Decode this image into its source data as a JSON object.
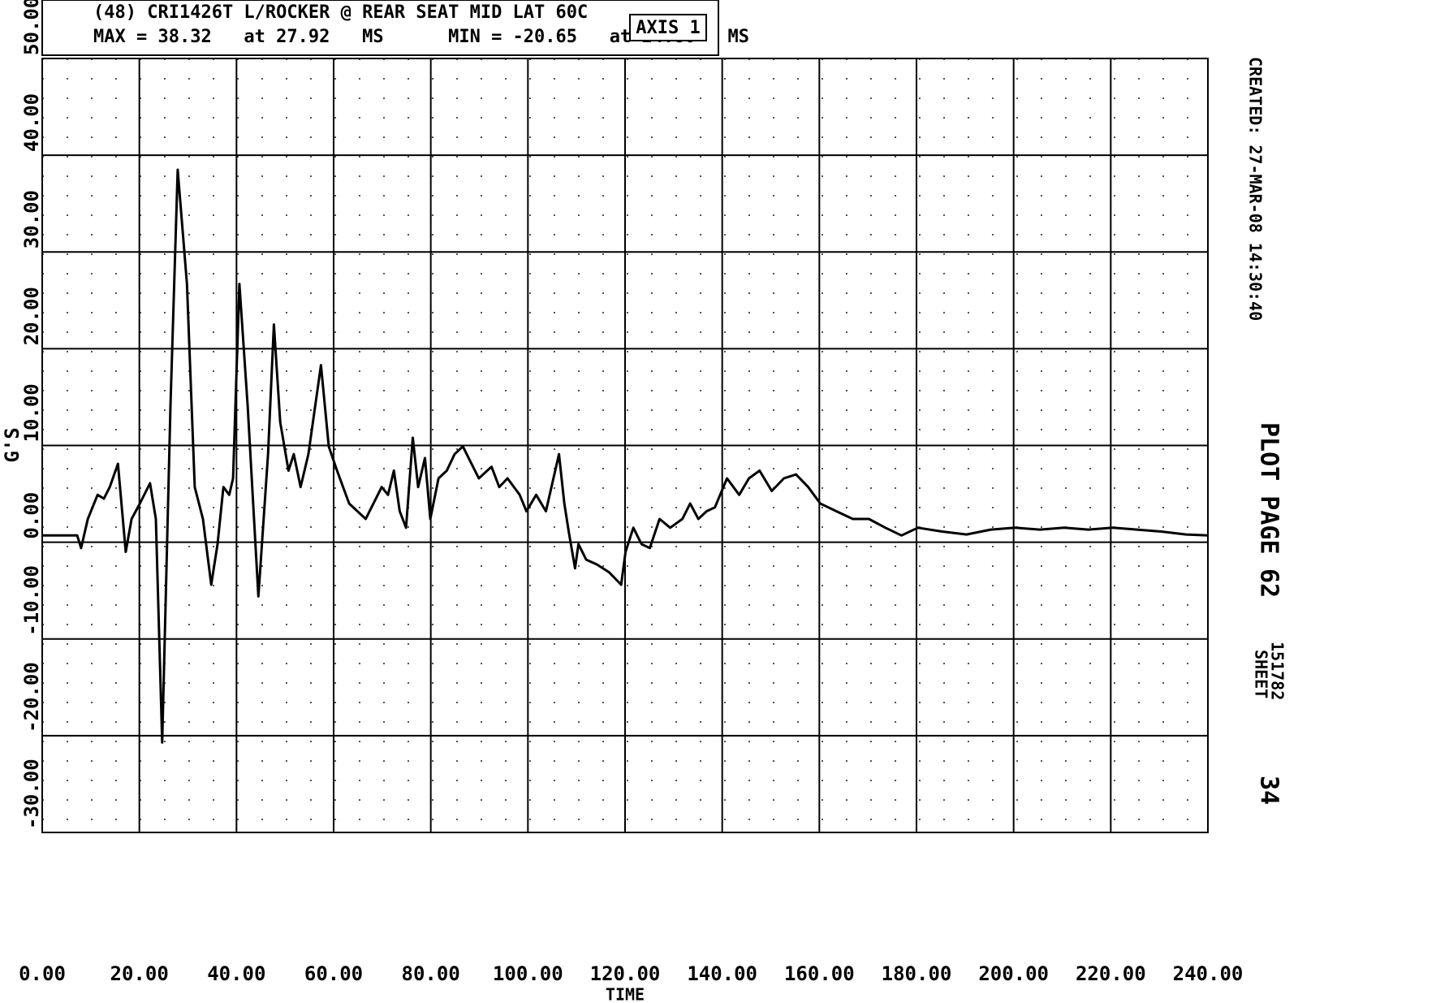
{
  "chart_data": {
    "type": "line",
    "title": "(48) CRI1426T L/ROCKER @ REAR SEAT MID LAT 60C",
    "subtitle": "MAX = 38.32   at 27.92   MS      MIN = -20.65   at 24.80   MS",
    "annotations": [
      "AXIS 1"
    ],
    "xlabel": "TIME",
    "ylabel": "G'S",
    "side_text": [
      "CREATED: 27-MAR-08 14:30:40",
      "PLOT PAGE",
      "62",
      "SHEET",
      "151782",
      "34"
    ],
    "color": "#000000",
    "grid": true,
    "xlim": [
      0,
      240
    ],
    "ylim": [
      -30,
      50
    ],
    "xticks": [
      {
        "value": 0,
        "label": "0.00"
      },
      {
        "value": 20,
        "label": "20.00"
      },
      {
        "value": 40,
        "label": "40.00"
      },
      {
        "value": 60,
        "label": "60.00"
      },
      {
        "value": 80,
        "label": "80.00"
      },
      {
        "value": 100,
        "label": "100.00"
      },
      {
        "value": 120,
        "label": "120.00"
      },
      {
        "value": 140,
        "label": "140.00"
      },
      {
        "value": 160,
        "label": "160.00"
      },
      {
        "value": 180,
        "label": "180.00"
      },
      {
        "value": 200,
        "label": "200.00"
      },
      {
        "value": 220,
        "label": "220.00"
      },
      {
        "value": 240,
        "label": "240.00"
      }
    ],
    "yticks": [
      {
        "value": -30,
        "label": "-30.00"
      },
      {
        "value": -20,
        "label": "-20.00"
      },
      {
        "value": -10,
        "label": "-10.00"
      },
      {
        "value": 0,
        "label": "0.00"
      },
      {
        "value": 10,
        "label": "10.00"
      },
      {
        "value": 20,
        "label": "20.00"
      },
      {
        "value": 30,
        "label": "30.00"
      },
      {
        "value": 40,
        "label": "40.00"
      },
      {
        "value": 50,
        "label": "50.00"
      }
    ],
    "x": [
      0,
      4.7,
      7.2,
      8,
      9.4,
      11.4,
      12.7,
      13.9,
      15.6,
      17.2,
      18.4,
      20.1,
      22.2,
      23.4,
      24.7,
      26.4,
      27.9,
      29.8,
      31.4,
      33.1,
      34.8,
      36.1,
      37.3,
      38.5,
      39.3,
      40.6,
      42.3,
      44.5,
      46.5,
      47.7,
      49.0,
      50.7,
      51.8,
      53.2,
      54.8,
      57.4,
      59.0,
      60.7,
      63.2,
      66.6,
      69.9,
      71.2,
      72.4,
      73.6,
      74.9,
      76.3,
      77.4,
      78.8,
      79.9,
      81.6,
      83.3,
      84.9,
      86.6,
      88.3,
      89.9,
      92.5,
      94.1,
      95.8,
      98.3,
      99.7,
      101.7,
      103.7,
      106.4,
      107.5,
      108.4,
      109.7,
      110.4,
      112.0,
      114.2,
      116.7,
      119.2,
      120.1,
      121.7,
      123.4,
      125.1,
      127.1,
      129.3,
      131.8,
      133.4,
      135.1,
      136.8,
      138.5,
      141.0,
      143.5,
      145.5,
      147.7,
      150.2,
      152.7,
      155.2,
      157.7,
      160.2,
      163.5,
      166.9,
      170.2,
      173.6,
      176.9,
      180.3,
      185.3,
      190.3,
      195.3,
      200.3,
      205.4,
      210.4,
      215.4,
      220.4,
      225.4,
      230.4,
      235.5,
      240
    ],
    "values": [
      0.7,
      0.7,
      0.7,
      -0.6,
      2.4,
      4.9,
      4.5,
      5.7,
      8.1,
      -1.0,
      2.4,
      4.0,
      6.1,
      2.4,
      -20.7,
      14.1,
      38.5,
      26.7,
      5.7,
      2.4,
      -4.4,
      -0.2,
      5.7,
      4.9,
      6.6,
      26.7,
      14.1,
      -5.6,
      9.1,
      22.5,
      12.4,
      7.4,
      9.1,
      5.7,
      9.1,
      18.3,
      9.9,
      7.4,
      4.0,
      2.4,
      5.7,
      4.9,
      7.4,
      3.2,
      1.5,
      10.8,
      5.7,
      8.7,
      2.4,
      6.6,
      7.4,
      9.1,
      9.9,
      8.2,
      6.6,
      7.8,
      5.7,
      6.6,
      4.9,
      3.2,
      4.9,
      3.2,
      9.1,
      4.0,
      1.1,
      -2.7,
      -0.2,
      -1.8,
      -2.3,
      -3.1,
      -4.4,
      -1.0,
      1.5,
      -0.2,
      -0.6,
      2.4,
      1.5,
      2.4,
      4.0,
      2.4,
      3.2,
      3.6,
      6.6,
      4.9,
      6.6,
      7.4,
      5.3,
      6.6,
      7.0,
      5.7,
      4.0,
      3.2,
      2.4,
      2.4,
      1.5,
      0.7,
      1.5,
      1.1,
      0.8,
      1.3,
      1.5,
      1.3,
      1.5,
      1.3,
      1.5,
      1.3,
      1.1,
      0.8,
      0.7
    ]
  }
}
